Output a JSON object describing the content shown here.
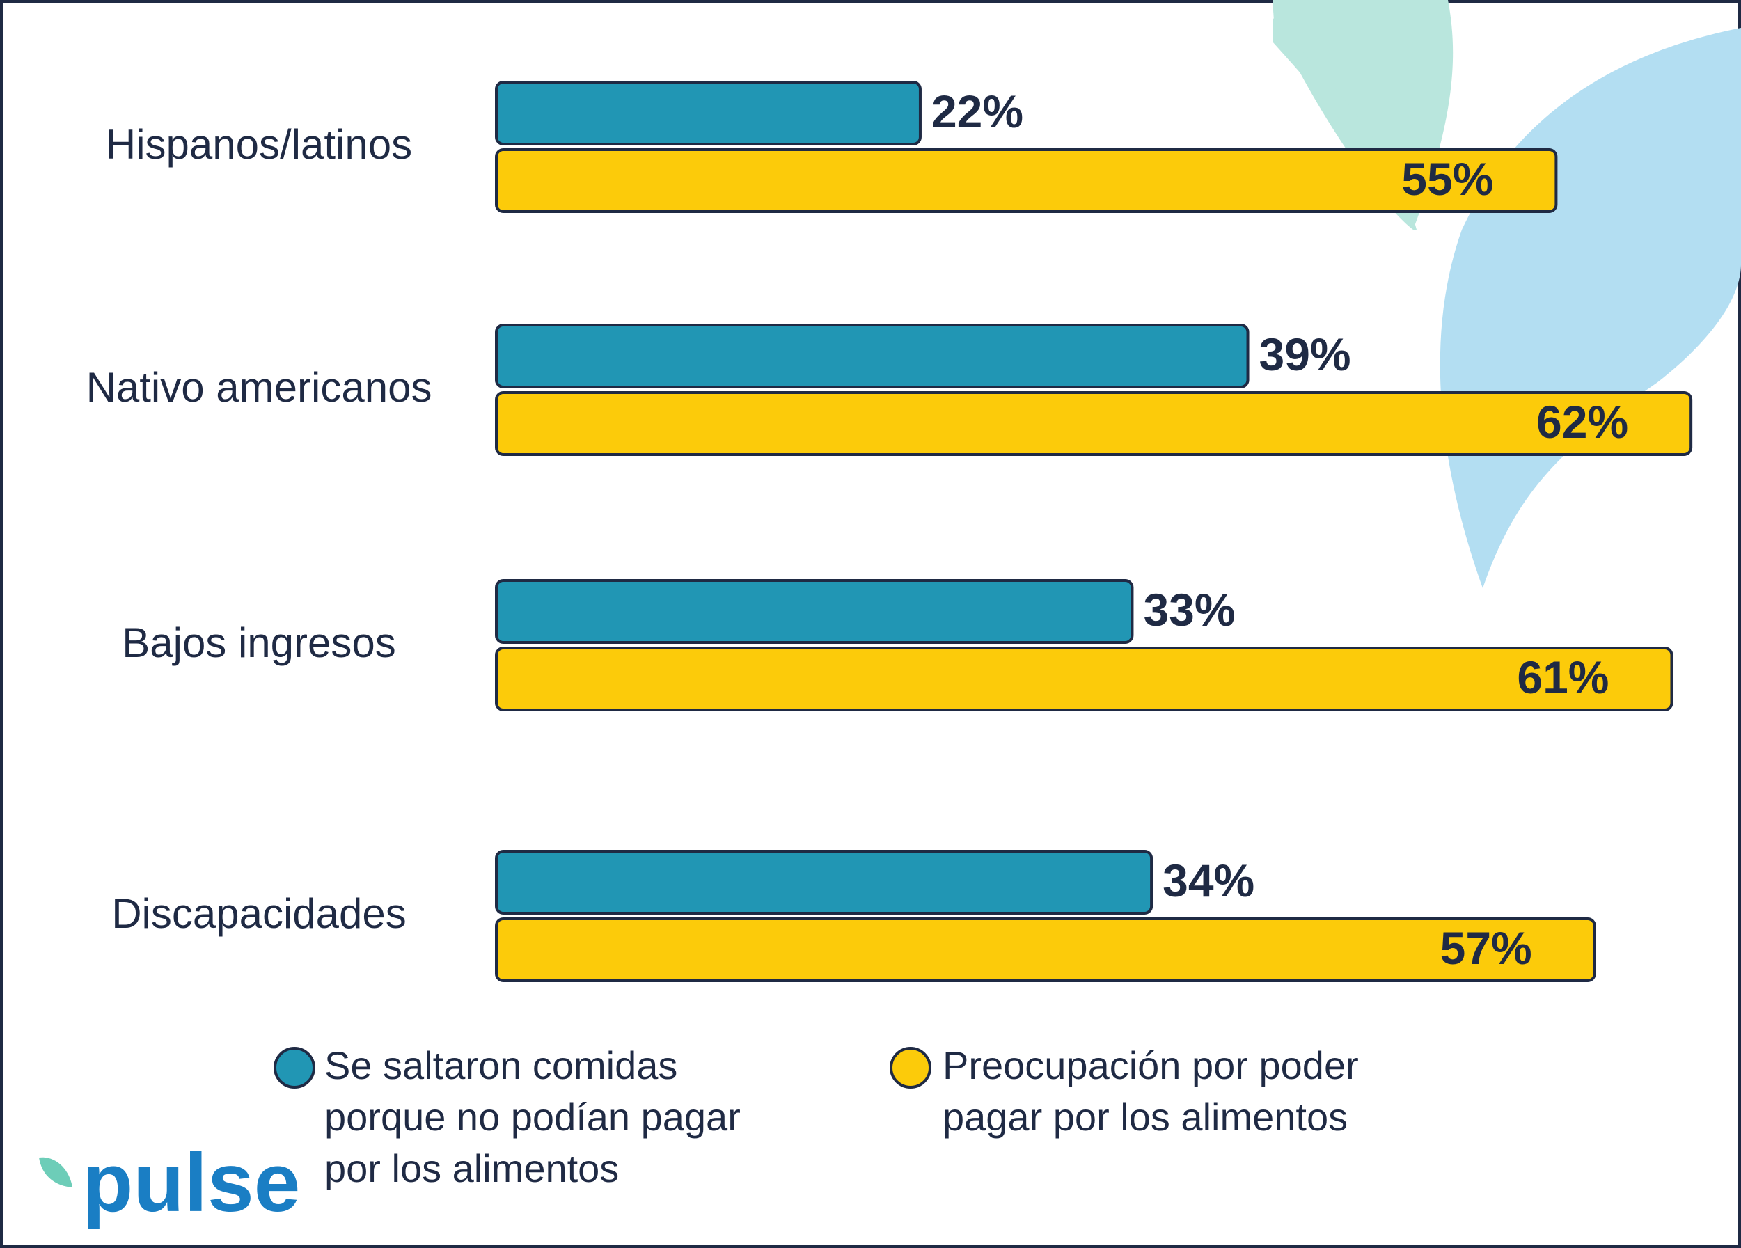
{
  "chart_data": {
    "type": "bar",
    "orientation": "horizontal",
    "categories": [
      "Hispanos/latinos",
      "Nativo americanos",
      "Bajos ingresos",
      "Discapacidades"
    ],
    "series": [
      {
        "name": "Se saltaron comidas porque no podían pagar por los alimentos",
        "color": "#2196b4",
        "values": [
          22,
          39,
          33,
          34
        ],
        "value_labels": [
          "22%",
          "39%",
          "33%",
          "34%"
        ]
      },
      {
        "name": "Preocupación por poder pagar por los alimentos",
        "color": "#fccb0a",
        "values": [
          55,
          62,
          61,
          57
        ],
        "value_labels": [
          "55%",
          "62%",
          "61%",
          "57%"
        ]
      }
    ]
  },
  "logo": "pulse"
}
